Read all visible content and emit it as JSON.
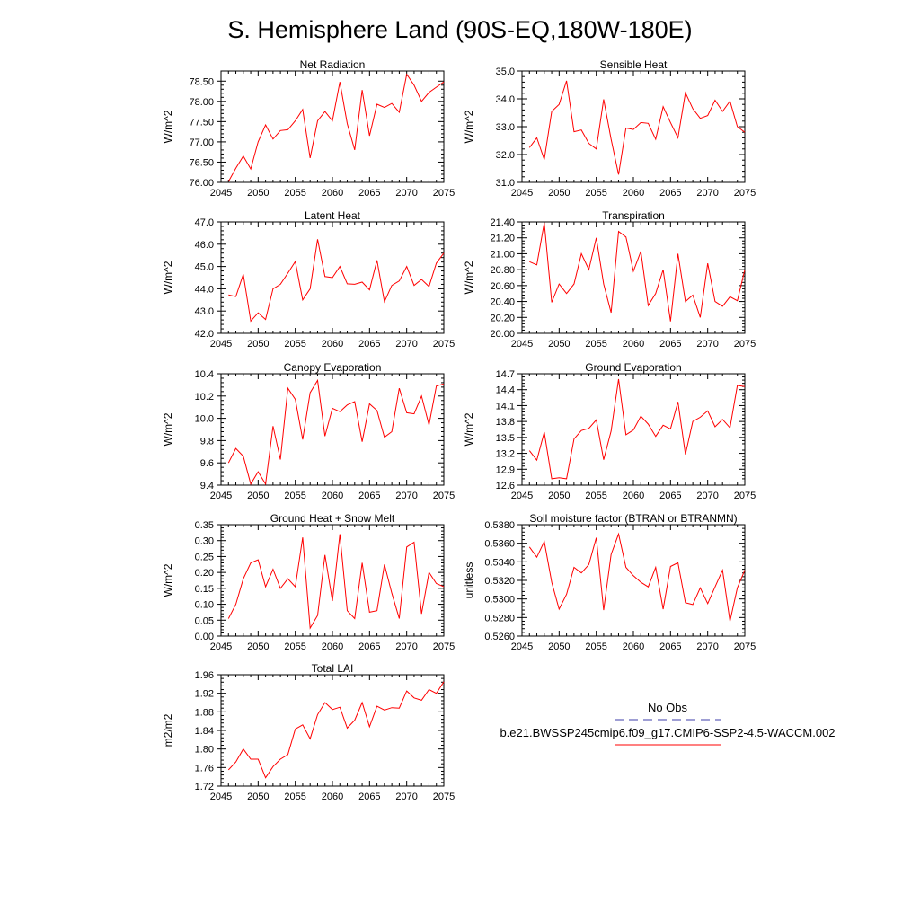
{
  "title": "S. Hemisphere Land (90S-EQ,180W-180E)",
  "xaxis": {
    "min": 2045,
    "max": 2075,
    "ticks": [
      2045,
      2050,
      2055,
      2060,
      2065,
      2070,
      2075
    ]
  },
  "legend": {
    "items": [
      {
        "label": "No Obs",
        "color": "#3d3da8",
        "dash": "dashed"
      },
      {
        "label": "b.e21.BWSSP245cmip6.f09_g17.CMIP6-SSP2-4.5-WACCM.002",
        "color": "#ff0000",
        "dash": "solid"
      }
    ]
  },
  "chart_data": [
    {
      "type": "line",
      "title": "Net Radiation",
      "ylabel": "W/m^2",
      "ylim": [
        76.0,
        78.75
      ],
      "yticks": [
        76.0,
        76.5,
        77.0,
        77.5,
        78.0,
        78.5
      ],
      "ydecimals": 2,
      "series": [
        {
          "color": "#ff0000",
          "x": [
            2046,
            2047,
            2048,
            2049,
            2050,
            2051,
            2052,
            2053,
            2054,
            2055,
            2056,
            2057,
            2058,
            2059,
            2060,
            2061,
            2062,
            2063,
            2064,
            2065,
            2066,
            2067,
            2068,
            2069,
            2070,
            2071,
            2072,
            2073,
            2074,
            2075
          ],
          "values": [
            76.02,
            76.35,
            76.65,
            76.33,
            77.0,
            77.42,
            77.07,
            77.28,
            77.3,
            77.52,
            77.8,
            76.6,
            77.52,
            77.75,
            77.52,
            78.48,
            77.45,
            76.8,
            78.28,
            77.15,
            77.93,
            77.85,
            77.95,
            77.73,
            78.67,
            78.4,
            78.0,
            78.22,
            78.35,
            78.48
          ]
        }
      ]
    },
    {
      "type": "line",
      "title": "Sensible Heat",
      "ylabel": "W/m^2",
      "ylim": [
        31.0,
        35.0
      ],
      "yticks": [
        31.0,
        32.0,
        33.0,
        34.0,
        35.0
      ],
      "ydecimals": 1,
      "series": [
        {
          "color": "#ff0000",
          "x": [
            2046,
            2047,
            2048,
            2049,
            2050,
            2051,
            2052,
            2053,
            2054,
            2055,
            2056,
            2057,
            2058,
            2059,
            2060,
            2061,
            2062,
            2063,
            2064,
            2065,
            2066,
            2067,
            2068,
            2069,
            2070,
            2071,
            2072,
            2073,
            2074,
            2075
          ],
          "values": [
            32.25,
            32.6,
            31.82,
            33.55,
            33.8,
            34.65,
            32.82,
            32.88,
            32.4,
            32.2,
            33.98,
            32.55,
            31.28,
            32.95,
            32.9,
            33.15,
            33.12,
            32.55,
            33.72,
            33.15,
            32.6,
            34.22,
            33.65,
            33.3,
            33.4,
            33.95,
            33.55,
            33.92,
            33.0,
            32.8
          ]
        }
      ]
    },
    {
      "type": "line",
      "title": "Latent Heat",
      "ylabel": "W/m^2",
      "ylim": [
        42.0,
        47.0
      ],
      "yticks": [
        42.0,
        43.0,
        44.0,
        45.0,
        46.0,
        47.0
      ],
      "ydecimals": 1,
      "series": [
        {
          "color": "#ff0000",
          "x": [
            2046,
            2047,
            2048,
            2049,
            2050,
            2051,
            2052,
            2053,
            2054,
            2055,
            2056,
            2057,
            2058,
            2059,
            2060,
            2061,
            2062,
            2063,
            2064,
            2065,
            2066,
            2067,
            2068,
            2069,
            2070,
            2071,
            2072,
            2073,
            2074,
            2075
          ],
          "values": [
            43.72,
            43.65,
            44.65,
            42.55,
            42.92,
            42.62,
            44.0,
            44.2,
            44.7,
            45.22,
            43.5,
            44.0,
            46.22,
            44.55,
            44.5,
            45.0,
            44.22,
            44.2,
            44.3,
            43.95,
            45.28,
            43.42,
            44.15,
            44.35,
            45.0,
            44.15,
            44.42,
            44.1,
            45.15,
            45.6
          ]
        }
      ]
    },
    {
      "type": "line",
      "title": "Transpiration",
      "ylabel": "W/m^2",
      "ylim": [
        20.0,
        21.4
      ],
      "yticks": [
        20.0,
        20.2,
        20.4,
        20.6,
        20.8,
        21.0,
        21.2,
        21.4
      ],
      "ydecimals": 2,
      "series": [
        {
          "color": "#ff0000",
          "x": [
            2046,
            2047,
            2048,
            2049,
            2050,
            2051,
            2052,
            2053,
            2054,
            2055,
            2056,
            2057,
            2058,
            2059,
            2060,
            2061,
            2062,
            2063,
            2064,
            2065,
            2066,
            2067,
            2068,
            2069,
            2070,
            2071,
            2072,
            2073,
            2074,
            2075
          ],
          "values": [
            20.9,
            20.86,
            21.39,
            20.39,
            20.62,
            20.5,
            20.62,
            21.0,
            20.8,
            21.2,
            20.62,
            20.26,
            21.28,
            21.21,
            20.78,
            21.03,
            20.35,
            20.5,
            20.8,
            20.15,
            21.0,
            20.4,
            20.48,
            20.2,
            20.88,
            20.4,
            20.34,
            20.46,
            20.41,
            20.8
          ]
        }
      ]
    },
    {
      "type": "line",
      "title": "Canopy Evaporation",
      "ylabel": "W/m^2",
      "ylim": [
        9.4,
        10.4
      ],
      "yticks": [
        9.4,
        9.6,
        9.8,
        10.0,
        10.2,
        10.4
      ],
      "ydecimals": 1,
      "series": [
        {
          "color": "#ff0000",
          "x": [
            2046,
            2047,
            2048,
            2049,
            2050,
            2051,
            2052,
            2053,
            2054,
            2055,
            2056,
            2057,
            2058,
            2059,
            2060,
            2061,
            2062,
            2063,
            2064,
            2065,
            2066,
            2067,
            2068,
            2069,
            2070,
            2071,
            2072,
            2073,
            2074,
            2075
          ],
          "values": [
            9.6,
            9.73,
            9.66,
            9.41,
            9.52,
            9.41,
            9.93,
            9.63,
            10.27,
            10.17,
            9.81,
            10.23,
            10.34,
            9.84,
            10.09,
            10.06,
            10.12,
            10.15,
            9.79,
            10.13,
            10.07,
            9.83,
            9.88,
            10.27,
            10.05,
            10.04,
            10.2,
            9.94,
            10.29,
            10.31
          ]
        }
      ]
    },
    {
      "type": "line",
      "title": "Ground Evaporation",
      "ylabel": "W/m^2",
      "ylim": [
        12.6,
        14.7
      ],
      "yticks": [
        12.6,
        12.9,
        13.2,
        13.5,
        13.8,
        14.1,
        14.4,
        14.7
      ],
      "ydecimals": 1,
      "series": [
        {
          "color": "#ff0000",
          "x": [
            2046,
            2047,
            2048,
            2049,
            2050,
            2051,
            2052,
            2053,
            2054,
            2055,
            2056,
            2057,
            2058,
            2059,
            2060,
            2061,
            2062,
            2063,
            2064,
            2065,
            2066,
            2067,
            2068,
            2069,
            2070,
            2071,
            2072,
            2073,
            2074,
            2075
          ],
          "values": [
            13.25,
            13.07,
            13.6,
            12.72,
            12.74,
            12.72,
            13.47,
            13.63,
            13.67,
            13.83,
            13.08,
            13.62,
            14.6,
            13.55,
            13.64,
            13.9,
            13.75,
            13.52,
            13.73,
            13.66,
            14.17,
            13.18,
            13.8,
            13.88,
            14.0,
            13.7,
            13.84,
            13.68,
            14.48,
            14.46
          ]
        }
      ]
    },
    {
      "type": "line",
      "title": "Ground Heat + Snow Melt",
      "ylabel": "W/m^2",
      "ylim": [
        0.0,
        0.35
      ],
      "yticks": [
        0.0,
        0.05,
        0.1,
        0.15,
        0.2,
        0.25,
        0.3,
        0.35
      ],
      "ydecimals": 2,
      "series": [
        {
          "color": "#ff0000",
          "x": [
            2046,
            2047,
            2048,
            2049,
            2050,
            2051,
            2052,
            2053,
            2054,
            2055,
            2056,
            2057,
            2058,
            2059,
            2060,
            2061,
            2062,
            2063,
            2064,
            2065,
            2066,
            2067,
            2068,
            2069,
            2070,
            2071,
            2072,
            2073,
            2074,
            2075
          ],
          "values": [
            0.055,
            0.1,
            0.18,
            0.23,
            0.24,
            0.155,
            0.21,
            0.15,
            0.18,
            0.155,
            0.31,
            0.025,
            0.065,
            0.255,
            0.11,
            0.32,
            0.08,
            0.055,
            0.23,
            0.075,
            0.08,
            0.225,
            0.135,
            0.055,
            0.28,
            0.295,
            0.07,
            0.2,
            0.165,
            0.155
          ]
        }
      ]
    },
    {
      "type": "line",
      "title": "Soil moisture factor (BTRAN or BTRANMN)",
      "ylabel": "unitless",
      "ylim": [
        0.526,
        0.538
      ],
      "yticks": [
        0.526,
        0.528,
        0.53,
        0.532,
        0.534,
        0.536,
        0.538
      ],
      "ydecimals": 4,
      "series": [
        {
          "color": "#ff0000",
          "x": [
            2046,
            2047,
            2048,
            2049,
            2050,
            2051,
            2052,
            2053,
            2054,
            2055,
            2056,
            2057,
            2058,
            2059,
            2060,
            2061,
            2062,
            2063,
            2064,
            2065,
            2066,
            2067,
            2068,
            2069,
            2070,
            2071,
            2072,
            2073,
            2074,
            2075
          ],
          "values": [
            0.5356,
            0.5345,
            0.5362,
            0.5318,
            0.5289,
            0.5305,
            0.5334,
            0.5328,
            0.5337,
            0.5366,
            0.5288,
            0.5348,
            0.537,
            0.5334,
            0.5325,
            0.5318,
            0.5313,
            0.5334,
            0.5289,
            0.5335,
            0.5339,
            0.5296,
            0.5294,
            0.5312,
            0.5295,
            0.5313,
            0.5331,
            0.5276,
            0.5312,
            0.5331
          ]
        }
      ]
    },
    {
      "type": "line",
      "title": "Total LAI",
      "ylabel": "m2/m2",
      "ylim": [
        1.72,
        1.96
      ],
      "yticks": [
        1.72,
        1.76,
        1.8,
        1.84,
        1.88,
        1.92,
        1.96
      ],
      "ydecimals": 2,
      "series": [
        {
          "color": "#ff0000",
          "x": [
            2046,
            2047,
            2048,
            2049,
            2050,
            2051,
            2052,
            2053,
            2054,
            2055,
            2056,
            2057,
            2058,
            2059,
            2060,
            2061,
            2062,
            2063,
            2064,
            2065,
            2066,
            2067,
            2068,
            2069,
            2070,
            2071,
            2072,
            2073,
            2074,
            2075
          ],
          "values": [
            1.755,
            1.772,
            1.8,
            1.778,
            1.778,
            1.738,
            1.762,
            1.778,
            1.788,
            1.843,
            1.852,
            1.822,
            1.874,
            1.9,
            1.885,
            1.89,
            1.845,
            1.862,
            1.9,
            1.848,
            1.892,
            1.884,
            1.889,
            1.888,
            1.925,
            1.91,
            1.905,
            1.928,
            1.92,
            1.945
          ]
        }
      ]
    }
  ]
}
